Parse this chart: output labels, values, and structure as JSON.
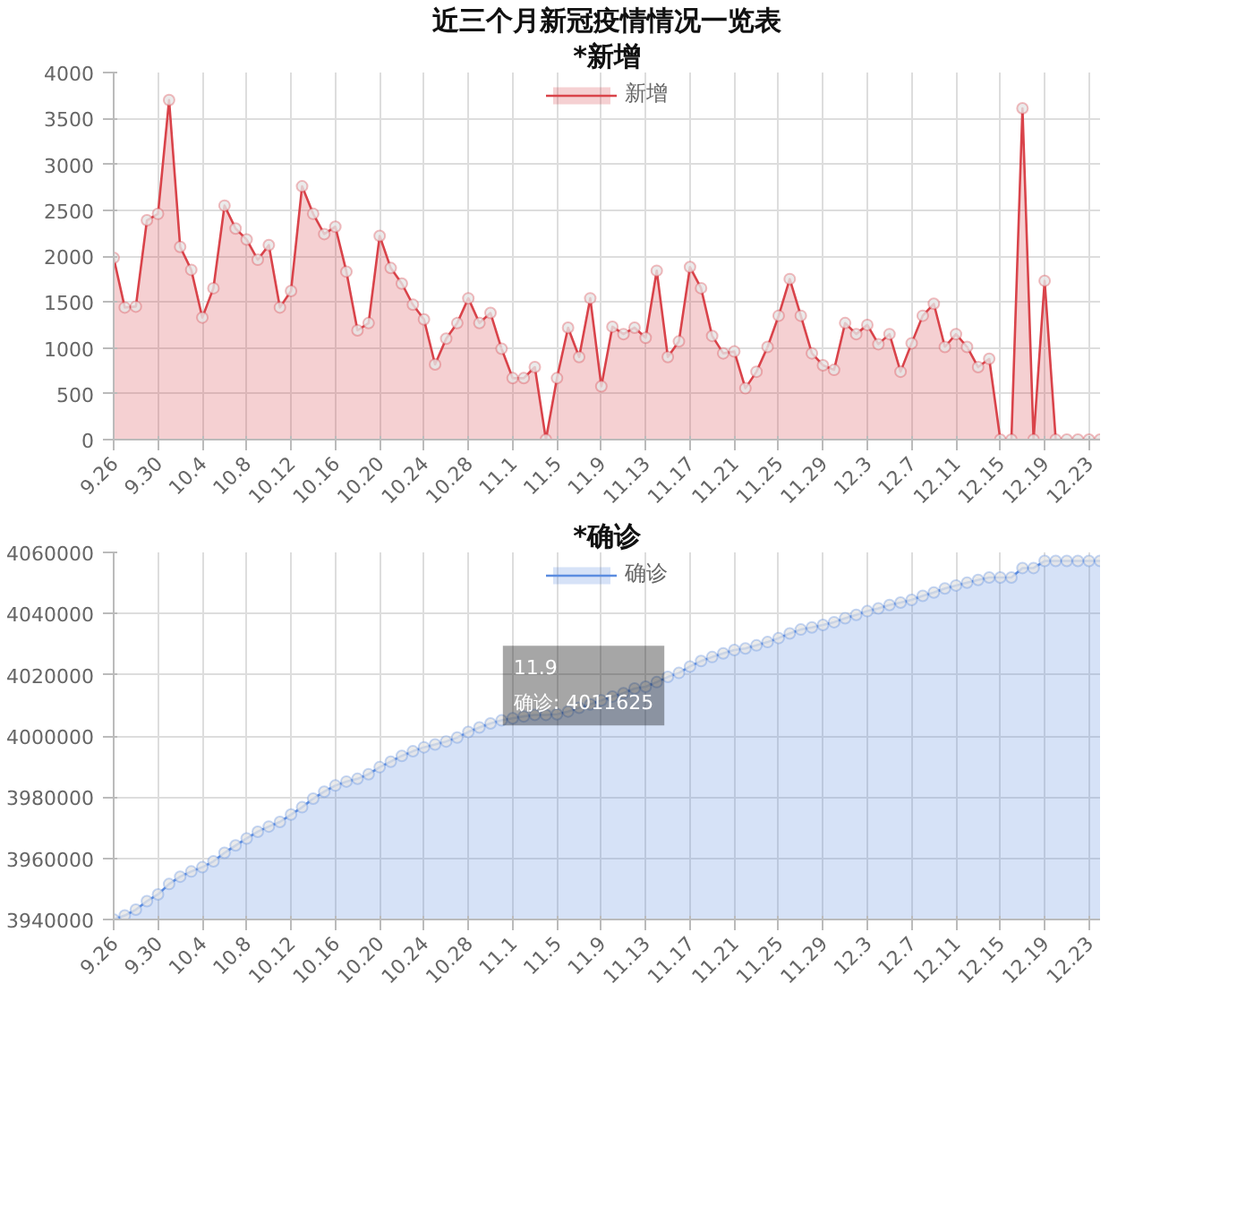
{
  "chart_data": [
    {
      "type": "area",
      "title": "近三个月新冠疫情情况一览表",
      "subtitle": "*新增",
      "categories": [
        "9.26",
        null,
        null,
        null,
        "9.30",
        null,
        null,
        null,
        "10.4",
        null,
        null,
        null,
        "10.8",
        null,
        null,
        null,
        "10.12",
        null,
        null,
        null,
        "10.16",
        null,
        null,
        null,
        "10.20",
        null,
        null,
        null,
        "10.24",
        null,
        null,
        null,
        "10.28",
        null,
        null,
        null,
        "11.1",
        null,
        null,
        null,
        "11.5",
        null,
        null,
        null,
        "11.9",
        null,
        null,
        null,
        "11.13",
        null,
        null,
        null,
        "11.17",
        null,
        null,
        null,
        "11.21",
        null,
        null,
        null,
        "11.25",
        null,
        null,
        null,
        "11.29",
        null,
        null,
        null,
        "12.3",
        null,
        null,
        null,
        "12.7",
        null,
        null,
        null,
        "12.11",
        null,
        null,
        null,
        "12.15",
        null,
        null,
        null,
        "12.19",
        null,
        null,
        null,
        "12.23",
        null
      ],
      "series": [
        {
          "name": "新增",
          "color": "#d9434a",
          "values": [
            1980,
            1440,
            1450,
            2390,
            2460,
            3700,
            2100,
            1850,
            1330,
            1650,
            2550,
            2300,
            2180,
            1960,
            2120,
            1440,
            1620,
            2760,
            2460,
            2240,
            2320,
            1830,
            1190,
            1270,
            2220,
            1870,
            1700,
            1470,
            1310,
            820,
            1100,
            1270,
            1540,
            1270,
            1380,
            990,
            670,
            670,
            790,
            0,
            670,
            1220,
            900,
            1540,
            580,
            1230,
            1150,
            1220,
            1110,
            1840,
            900,
            1070,
            1880,
            1650,
            1130,
            940,
            960,
            560,
            740,
            1010,
            1350,
            1750,
            1350,
            940,
            810,
            760,
            1270,
            1150,
            1250,
            1040,
            1150,
            740,
            1050,
            1350,
            1480,
            1010,
            1150,
            1010,
            790,
            880,
            0,
            0,
            3610,
            0,
            1730,
            0,
            0,
            0,
            0,
            0
          ]
        }
      ],
      "ylim": [
        0,
        4000
      ],
      "yticks": [
        0,
        500,
        1000,
        1500,
        2000,
        2500,
        3000,
        3500,
        4000
      ],
      "grid": true,
      "legend": "top",
      "marker": "circle"
    },
    {
      "type": "area",
      "title": "*确诊",
      "categories": [
        "9.26",
        null,
        null,
        null,
        "9.30",
        null,
        null,
        null,
        "10.4",
        null,
        null,
        null,
        "10.8",
        null,
        null,
        null,
        "10.12",
        null,
        null,
        null,
        "10.16",
        null,
        null,
        null,
        "10.20",
        null,
        null,
        null,
        "10.24",
        null,
        null,
        null,
        "10.28",
        null,
        null,
        null,
        "11.1",
        null,
        null,
        null,
        "11.5",
        null,
        null,
        null,
        "11.9",
        null,
        null,
        null,
        "11.13",
        null,
        null,
        null,
        "11.17",
        null,
        null,
        null,
        "11.21",
        null,
        null,
        null,
        "11.25",
        null,
        null,
        null,
        "11.29",
        null,
        null,
        null,
        "12.3",
        null,
        null,
        null,
        "12.7",
        null,
        null,
        null,
        "12.11",
        null,
        null,
        null,
        "12.15",
        null,
        null,
        null,
        "12.19",
        null,
        null,
        null,
        "12.23",
        null
      ],
      "series": [
        {
          "name": "确诊",
          "color": "#5b8ce0",
          "values": [
            3940000,
            3941300,
            3943200,
            3946000,
            3948200,
            3951600,
            3954000,
            3955700,
            3957100,
            3959000,
            3961800,
            3964200,
            3966500,
            3968700,
            3970400,
            3971900,
            3974300,
            3976700,
            3979500,
            3981800,
            3983800,
            3985100,
            3986000,
            3987500,
            3989800,
            3991600,
            3993500,
            3995000,
            3996300,
            3997200,
            3998200,
            3999500,
            4001300,
            4002800,
            4004100,
            4005100,
            4005800,
            4006400,
            4006900,
            4006900,
            4007100,
            4008000,
            4009200,
            4010300,
            4011625,
            4012900,
            4014000,
            4015500,
            4016100,
            4017600,
            4019300,
            4020600,
            4022700,
            4024500,
            4025800,
            4027000,
            4028100,
            4028600,
            4029600,
            4030700,
            4032000,
            4033500,
            4034800,
            4035500,
            4036300,
            4037200,
            4038500,
            4039600,
            4040800,
            4041700,
            4042800,
            4043600,
            4044500,
            4045800,
            4046900,
            4048200,
            4049200,
            4050100,
            4051000,
            4051800,
            4051800,
            4051800,
            4054900,
            4054900,
            4057200,
            4057200,
            4057200,
            4057200,
            4057200,
            4057200
          ]
        }
      ],
      "ylim": [
        3940000,
        4060000
      ],
      "yticks": [
        3940000,
        3960000,
        3980000,
        4000000,
        4020000,
        4040000,
        4060000
      ],
      "grid": true,
      "legend": "top",
      "marker": "circle",
      "annotations": [
        {
          "text": "11.9\n确诊: 4011625",
          "x": "11.9",
          "y": 4011625
        }
      ]
    }
  ]
}
